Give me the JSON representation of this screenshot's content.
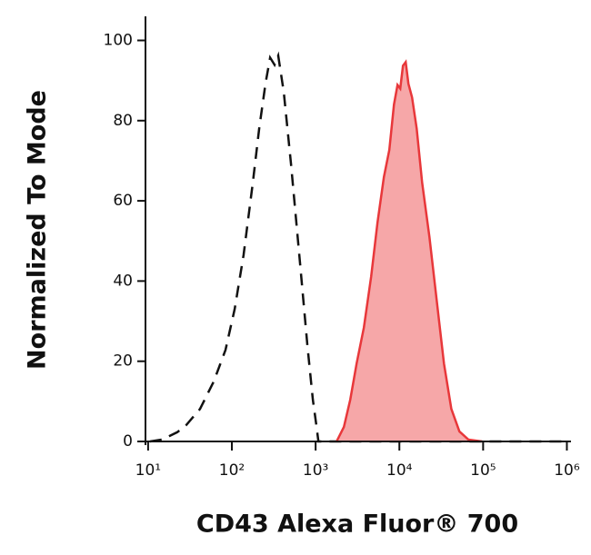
{
  "chart_data": {
    "type": "histogram-overlay",
    "xlabel": "CD43 Alexa Fluor® 700",
    "ylabel": "Normalized To Mode",
    "xscale": "log",
    "xlim": [
      9.3,
      1120000
    ],
    "ylim": [
      0,
      106
    ],
    "xticks": [
      {
        "value": 10,
        "label": "10¹"
      },
      {
        "value": 100,
        "label": "10²"
      },
      {
        "value": 1000,
        "label": "10³"
      },
      {
        "value": 10000,
        "label": "10⁴"
      },
      {
        "value": 100000,
        "label": "10⁵"
      },
      {
        "value": 1000000,
        "label": "10⁶"
      }
    ],
    "yticks": [
      0,
      20,
      40,
      60,
      80,
      100
    ],
    "series": [
      {
        "style": "dashed",
        "color": "#111111",
        "x": [
          10.5,
          14.6,
          22.3,
          28.6,
          41.7,
          60.7,
          84,
          108,
          138,
          178,
          212,
          253,
          286,
          324,
          358,
          417,
          509,
          654,
          798,
          927,
          1026,
          1080,
          1000000
        ],
        "values": [
          0,
          0.45,
          2.3,
          4.1,
          8.1,
          14.9,
          22.8,
          33.0,
          46.5,
          64.6,
          78.1,
          89.4,
          95.7,
          93.9,
          96.2,
          87.1,
          69.1,
          44.2,
          23.9,
          10.4,
          3.6,
          0,
          0
        ]
      },
      {
        "style": "filled",
        "color": "#e8373a",
        "fill": "#f6a7a8",
        "x": [
          1778,
          2173,
          2588,
          3083,
          3767,
          4603,
          5483,
          6531,
          7586,
          8610,
          9506,
          10250,
          11050,
          11910,
          12840,
          14190,
          16090,
          18700,
          22850,
          27910,
          34110,
          41690,
          52120,
          66990,
          97500
        ],
        "values": [
          0,
          3.6,
          10.4,
          19.4,
          28.4,
          41.1,
          54.6,
          65.9,
          72.7,
          84.0,
          88.9,
          88.0,
          93.7,
          94.6,
          89.2,
          85.8,
          78.0,
          64.5,
          51.0,
          35.2,
          19.4,
          8.1,
          2.5,
          0.45,
          0
        ]
      }
    ]
  }
}
